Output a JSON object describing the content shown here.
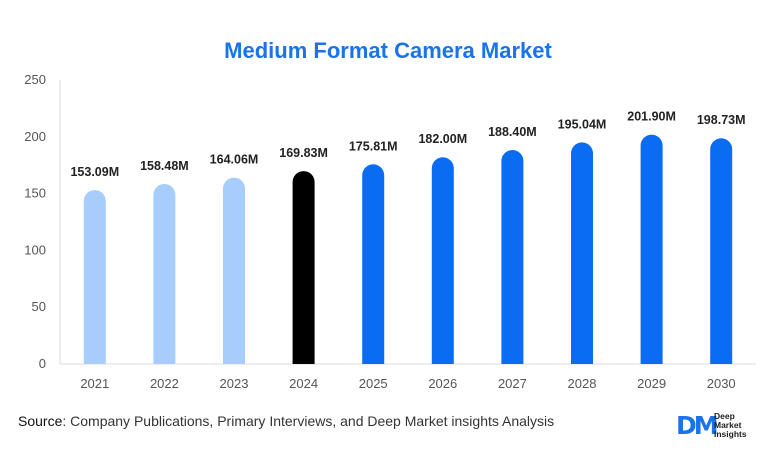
{
  "chart_data": {
    "type": "bar",
    "title": "Medium Format Camera Market",
    "categories": [
      "2021",
      "2022",
      "2023",
      "2024",
      "2025",
      "2026",
      "2027",
      "2028",
      "2029",
      "2030"
    ],
    "values": [
      153.09,
      158.48,
      164.06,
      169.83,
      175.81,
      182.0,
      188.4,
      195.04,
      201.9,
      198.73
    ],
    "data_labels": [
      "153.09M",
      "158.48M",
      "164.06M",
      "169.83M",
      "175.81M",
      "182.00M",
      "188.40M",
      "195.04M",
      "201.90M",
      "198.73M"
    ],
    "bar_colors": [
      "#a6cdfb",
      "#a6cdfb",
      "#a6cdfb",
      "#000000",
      "#0a6cf2",
      "#0a6cf2",
      "#0a6cf2",
      "#0a6cf2",
      "#0a6cf2",
      "#0a6cf2"
    ],
    "ylim": [
      0,
      250
    ],
    "yticks": [
      0,
      50,
      100,
      150,
      200,
      250
    ],
    "xlabel": "",
    "ylabel": "",
    "grid": false,
    "legend": "none"
  },
  "footer": {
    "source_label": "Source",
    "source_text": ": Company Publications, Primary Interviews, and Deep Market insights Analysis"
  },
  "logo": {
    "mark": "DM",
    "line1": "Deep",
    "line2": "Market",
    "line3": "Insights"
  },
  "colors": {
    "title": "#1a73e8",
    "forecast": "#0a6cf2",
    "historical": "#a6cdfb",
    "base_year": "#000000"
  }
}
